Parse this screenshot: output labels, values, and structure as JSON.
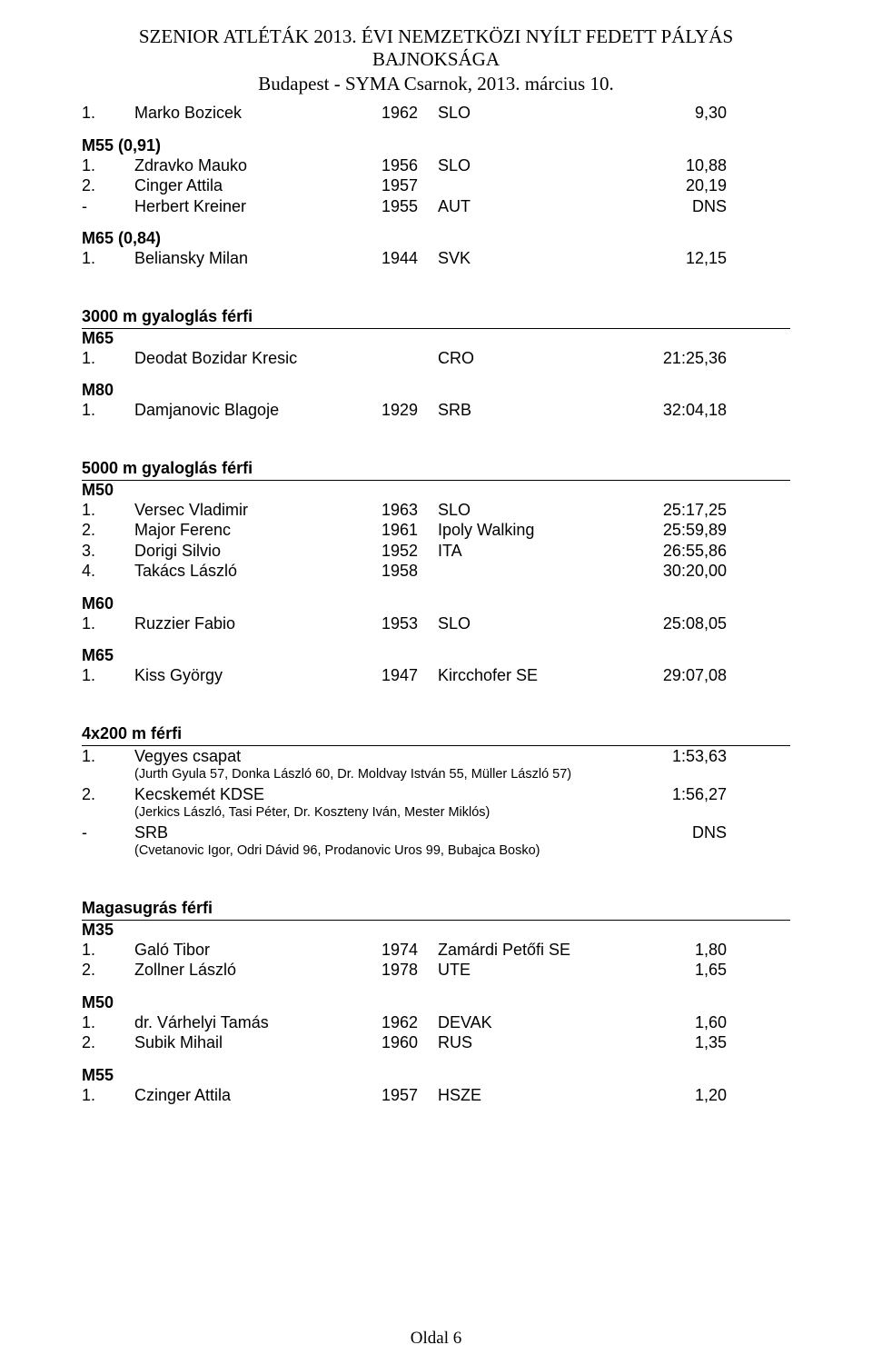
{
  "header": {
    "title": "SZENIOR ATLÉTÁK 2013. ÉVI NEMZETKÖZI NYÍLT FEDETT PÁLYÁS BAJNOKSÁGA",
    "subtitle": "Budapest - SYMA Csarnok, 2013. március 10."
  },
  "footer": "Oldal 6",
  "sections": {
    "top": {
      "rows": [
        {
          "place": "1.",
          "name": "Marko Bozicek",
          "year": "1962",
          "club": "SLO",
          "result": "9,30"
        }
      ]
    },
    "m55_091": {
      "label": "M55 (0,91)",
      "rows": [
        {
          "place": "1.",
          "name": "Zdravko Mauko",
          "year": "1956",
          "club": "SLO",
          "result": "10,88"
        },
        {
          "place": "2.",
          "name": "Cinger Attila",
          "year": "1957",
          "club": "",
          "result": "20,19"
        },
        {
          "place": "-",
          "name": "Herbert Kreiner",
          "year": "1955",
          "club": "AUT",
          "result": "DNS"
        }
      ]
    },
    "m65_084": {
      "label": "M65 (0,84)",
      "rows": [
        {
          "place": "1.",
          "name": "Beliansky Milan",
          "year": "1944",
          "club": "SVK",
          "result": "12,15"
        }
      ]
    },
    "walk3000": {
      "heading": "3000 m gyaloglás férfi",
      "m65": {
        "label": "M65",
        "rows": [
          {
            "place": "1.",
            "name": "Deodat Bozidar Kresic",
            "year": "",
            "club": "CRO",
            "result": "21:25,36"
          }
        ]
      },
      "m80": {
        "label": "M80",
        "rows": [
          {
            "place": "1.",
            "name": "Damjanovic Blagoje",
            "year": "1929",
            "club": "SRB",
            "result": "32:04,18"
          }
        ]
      }
    },
    "walk5000": {
      "heading": "5000 m gyaloglás férfi",
      "m50": {
        "label": "M50",
        "rows": [
          {
            "place": "1.",
            "name": "Versec Vladimir",
            "year": "1963",
            "club": "SLO",
            "result": "25:17,25"
          },
          {
            "place": "2.",
            "name": "Major Ferenc",
            "year": "1961",
            "club": "Ipoly Walking",
            "result": "25:59,89"
          },
          {
            "place": "3.",
            "name": "Dorigi Silvio",
            "year": "1952",
            "club": "ITA",
            "result": "26:55,86"
          },
          {
            "place": "4.",
            "name": "Takács László",
            "year": "1958",
            "club": "",
            "result": "30:20,00"
          }
        ]
      },
      "m60": {
        "label": "M60",
        "rows": [
          {
            "place": "1.",
            "name": "Ruzzier Fabio",
            "year": "1953",
            "club": "SLO",
            "result": "25:08,05"
          }
        ]
      },
      "m65": {
        "label": "M65",
        "rows": [
          {
            "place": "1.",
            "name": "Kiss György",
            "year": "1947",
            "club": "Kircchofer SE",
            "result": "29:07,08"
          }
        ]
      }
    },
    "relay": {
      "heading": "4x200 m férfi",
      "rows": [
        {
          "place": "1.",
          "team": "Vegyes csapat",
          "result": "1:53,63",
          "note": "(Jurth Gyula 57, Donka László 60, Dr. Moldvay István 55, Müller László 57)"
        },
        {
          "place": "2.",
          "team": "Kecskemét KDSE",
          "result": "1:56,27",
          "note": "(Jerkics László, Tasi Péter, Dr. Koszteny Iván, Mester Miklós)"
        },
        {
          "place": "-",
          "team": "SRB",
          "result": "DNS",
          "note": "(Cvetanovic Igor, Odri Dávid 96, Prodanovic Uros 99, Bubajca Bosko)"
        }
      ]
    },
    "highjump": {
      "heading": "Magasugrás férfi",
      "m35": {
        "label": "M35",
        "rows": [
          {
            "place": "1.",
            "name": "Galó Tibor",
            "year": "1974",
            "club": "Zamárdi Petőfi SE",
            "result": "1,80"
          },
          {
            "place": "2.",
            "name": "Zollner László",
            "year": "1978",
            "club": "UTE",
            "result": "1,65"
          }
        ]
      },
      "m50": {
        "label": "M50",
        "rows": [
          {
            "place": "1.",
            "name": "dr. Várhelyi Tamás",
            "year": "1962",
            "club": "DEVAK",
            "result": "1,60"
          },
          {
            "place": "2.",
            "name": "Subik Mihail",
            "year": "1960",
            "club": "RUS",
            "result": "1,35"
          }
        ]
      },
      "m55": {
        "label": "M55",
        "rows": [
          {
            "place": "1.",
            "name": "Czinger Attila",
            "year": "1957",
            "club": "HSZE",
            "result": "1,20"
          }
        ]
      }
    }
  }
}
